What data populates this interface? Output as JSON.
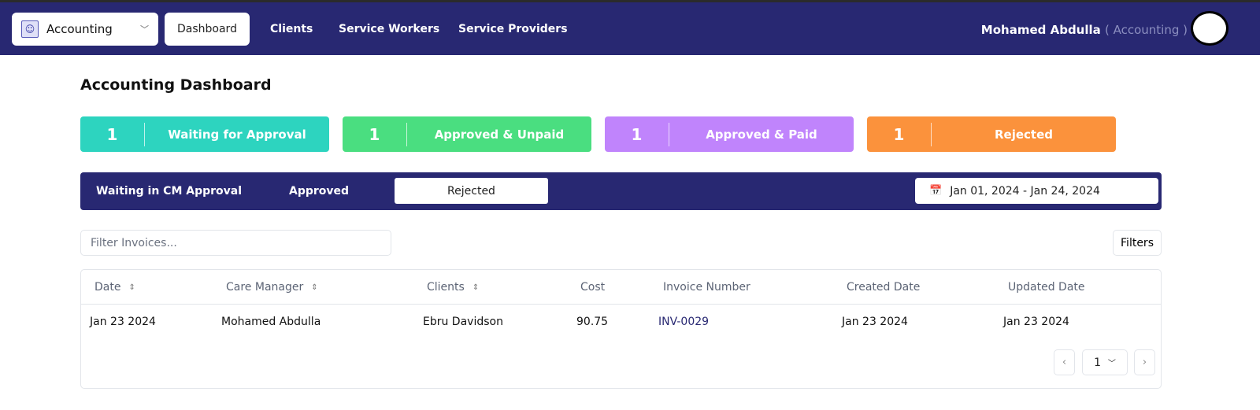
{
  "nav": {
    "role_select": "Accounting",
    "items": [
      "Dashboard",
      "Clients",
      "Service Workers",
      "Service Providers"
    ],
    "active": "Dashboard",
    "user_name": "Mohamed Abdulla",
    "user_role": "( Accounting )"
  },
  "page_title": "Accounting Dashboard",
  "cards": [
    {
      "count": "1",
      "label": "Waiting for Approval",
      "color": "#2dd4bf"
    },
    {
      "count": "1",
      "label": "Approved & Unpaid",
      "color": "#4ade80"
    },
    {
      "count": "1",
      "label": "Approved & Paid",
      "color": "#c084fc"
    },
    {
      "count": "1",
      "label": "Rejected",
      "color": "#fb923c"
    }
  ],
  "tabs": [
    "Waiting in CM Approval",
    "Approved",
    "Rejected"
  ],
  "active_tab": "Rejected",
  "date_range": "Jan 01, 2024 - Jan 24, 2024",
  "filter": {
    "placeholder": "Filter Invoices...",
    "button": "Filters"
  },
  "table": {
    "columns": [
      "Date",
      "Care Manager",
      "Clients",
      "Cost",
      "Invoice Number",
      "Created Date",
      "Updated Date"
    ],
    "rows": [
      [
        "Jan 23 2024",
        "Mohamed Abdulla",
        "Ebru Davidson",
        "90.75",
        "INV-0029",
        "Jan 23 2024",
        "Jan 23 2024"
      ]
    ]
  },
  "pagination": {
    "page": "1"
  }
}
